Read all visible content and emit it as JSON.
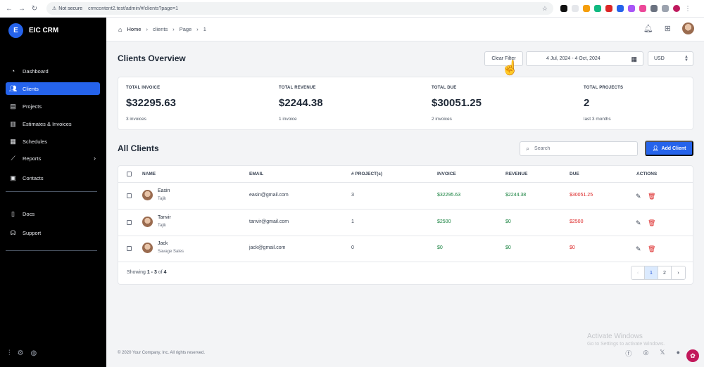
{
  "browser": {
    "security": "Not secure",
    "url": "crmcontent2.test/admin/#/clients?page=1"
  },
  "brand": {
    "logo_letter": "E",
    "name": "EIC CRM"
  },
  "sidebar": {
    "items": [
      {
        "label": "Dashboard",
        "icon": "dashboard-icon"
      },
      {
        "label": "Clients",
        "icon": "users-icon",
        "active": true
      },
      {
        "label": "Projects",
        "icon": "projects-icon"
      },
      {
        "label": "Estimates & Invoices",
        "icon": "invoice-icon"
      },
      {
        "label": "Schedules",
        "icon": "calendar-icon"
      },
      {
        "label": "Reports",
        "icon": "chart-icon"
      },
      {
        "label": "Contacts",
        "icon": "contacts-icon"
      },
      {
        "label": "Docs",
        "icon": "docs-icon"
      },
      {
        "label": "Support",
        "icon": "headset-icon"
      }
    ]
  },
  "breadcrumb": {
    "home": "Home",
    "section": "clients",
    "page_label": "Page",
    "page_num": "1"
  },
  "header": {
    "title": "Clients Overview",
    "clear_filter": "Clear Filter",
    "date_range": "4 Jul, 2024 - 4 Oct, 2024",
    "currency": "USD"
  },
  "stats": [
    {
      "label": "TOTAL INVOICE",
      "value": "$32295.63",
      "sub": "3 invoices"
    },
    {
      "label": "TOTAL REVENUE",
      "value": "$2244.38",
      "sub": "1 invoice"
    },
    {
      "label": "TOTAL DUE",
      "value": "$30051.25",
      "sub": "2 invoices"
    },
    {
      "label": "TOTAL PROJECTS",
      "value": "2",
      "sub": "last 3 months"
    }
  ],
  "clients_section": {
    "title": "All Clients",
    "search_placeholder": "Search",
    "add_button": "Add Client"
  },
  "table": {
    "columns": [
      "NAME",
      "EMAIL",
      "# PROJECT(s)",
      "INVOICE",
      "REVENUE",
      "DUE",
      "ACTIONS"
    ],
    "rows": [
      {
        "name": "Easin",
        "company": "Tajik",
        "email": "easin@gmail.com",
        "projects": "3",
        "invoice": "$32295.63",
        "revenue": "$2244.38",
        "due": "$30051.25"
      },
      {
        "name": "Tanvir",
        "company": "Tajik",
        "email": "tanvir@gmail.com",
        "projects": "1",
        "invoice": "$2500",
        "revenue": "$0",
        "due": "$2500"
      },
      {
        "name": "Jack",
        "company": "Savage Sales",
        "email": "jack@gmail.com",
        "projects": "0",
        "invoice": "$0",
        "revenue": "$0",
        "due": "$0"
      }
    ]
  },
  "pagination": {
    "showing_prefix": "Showing",
    "from": "1",
    "dash": "-",
    "to": "3",
    "of": "of",
    "total": "4",
    "prev": "‹",
    "pages": [
      "1",
      "2"
    ],
    "next": "›"
  },
  "footer": {
    "copyright": "© 2020 Your Company, Inc. All rights reserved."
  },
  "watermark": {
    "line1": "Activate Windows",
    "line2": "Go to Settings to activate Windows."
  },
  "colors": {
    "accent": "#2563eb",
    "sidebar_bg": "#000000",
    "positive": "#15803d",
    "negative": "#dc2626"
  }
}
